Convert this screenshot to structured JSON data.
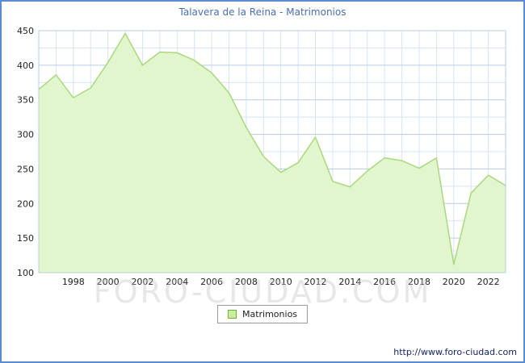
{
  "title": "Talavera de la Reina - Matrimonios",
  "legend": {
    "label": "Matrimonios"
  },
  "watermark": "FORO-CIUDAD.COM",
  "footer": {
    "url": "http://www.foro-ciudad.com"
  },
  "colors": {
    "border": "#5b8bd0",
    "title_text": "#4a6faf",
    "grid_major": "#b9cde6",
    "grid_minor": "#d8e4f2",
    "axis_text": "#222222",
    "area_fill": "#e2f6cd",
    "area_line": "#a9d87e"
  },
  "chart_data": {
    "type": "area",
    "title": "Talavera de la Reina - Matrimonios",
    "xlabel": "",
    "ylabel": "Matrimonios",
    "ylim": [
      100,
      450
    ],
    "y_major_step": 50,
    "y_minor_step": 25,
    "grid": true,
    "legend_position": "bottom",
    "x": [
      1996,
      1997,
      1998,
      1999,
      2000,
      2001,
      2002,
      2003,
      2004,
      2005,
      2006,
      2007,
      2008,
      2009,
      2010,
      2011,
      2012,
      2013,
      2014,
      2015,
      2016,
      2017,
      2018,
      2019,
      2020,
      2021,
      2022,
      2023
    ],
    "values": [
      365,
      386,
      353,
      367,
      404,
      446,
      400,
      419,
      418,
      407,
      389,
      360,
      310,
      268,
      245,
      259,
      296,
      232,
      224,
      247,
      266,
      262,
      251,
      266,
      112,
      215,
      241,
      226
    ],
    "x_tick_labels": [
      1998,
      2000,
      2002,
      2004,
      2006,
      2008,
      2010,
      2012,
      2014,
      2016,
      2018,
      2020,
      2022
    ],
    "series_name": "Matrimonios"
  }
}
